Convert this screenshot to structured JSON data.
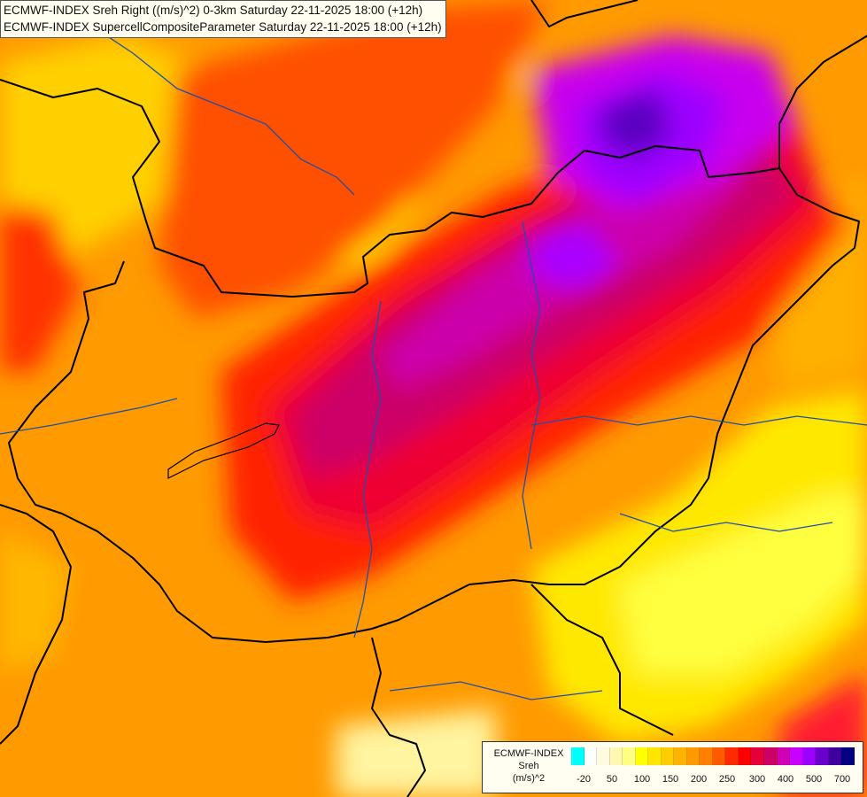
{
  "titles": {
    "line1": "ECMWF-INDEX Sreh Right ((m/s)^2) 0-3km Saturday 22-11-2025 18:00 (+12h)",
    "line2": "ECMWF-INDEX SupercellCompositeParameter Saturday 22-11-2025 18:00 (+12h)"
  },
  "legend": {
    "model": "ECMWF-INDEX",
    "parameter": "Sreh",
    "unit": "(m/s)^2",
    "colors": [
      "#00ffff",
      "#ffffff",
      "#fffbe0",
      "#fff8b0",
      "#ffff80",
      "#ffff00",
      "#ffe600",
      "#ffcc00",
      "#ffb200",
      "#ff9900",
      "#ff7f00",
      "#ff5a00",
      "#ff2a00",
      "#ff0000",
      "#e6003a",
      "#cc0066",
      "#d200b4",
      "#c800ff",
      "#9c00ff",
      "#6a00cc",
      "#4000a0",
      "#000080"
    ],
    "tick_labels": [
      "-20",
      "50",
      "100",
      "150",
      "200",
      "250",
      "300",
      "400",
      "500",
      "700"
    ]
  }
}
